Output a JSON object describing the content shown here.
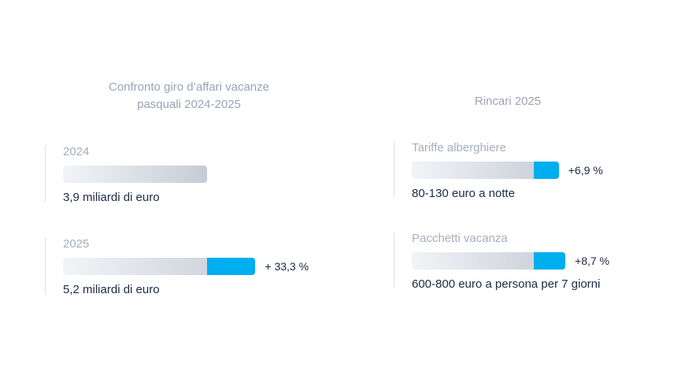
{
  "chart_data": [
    {
      "type": "bar",
      "title": "Confronto giro d’affari vacanze pasquali 2024-2025",
      "categories": [
        "2024",
        "2025"
      ],
      "values": [
        3.9,
        5.2
      ],
      "value_labels": [
        "3,9 miliardi di euro",
        "5,2 miliardi di euro"
      ],
      "increase_labels": [
        "",
        "+ 33,3 %"
      ],
      "colors": {
        "base_start": "#f2f4f7",
        "base_end": "#c6ccd6",
        "increase": "#00aeef",
        "text": "#1c2a44",
        "muted": "#a7aebd"
      }
    },
    {
      "type": "bar",
      "title": "Rincari 2025",
      "categories": [
        "Tariffe alberghiere",
        "Pacchetti vacanza"
      ],
      "values": [
        6.9,
        8.7
      ],
      "value_labels": [
        "+6,9 %",
        "+8,7 %"
      ],
      "details": [
        "80-130 euro a notte",
        "600-800 euro a persona per 7 giorni"
      ],
      "colors": {
        "base_start": "#f2f4f7",
        "base_end": "#c6ccd6",
        "increase": "#00aeef"
      }
    }
  ]
}
